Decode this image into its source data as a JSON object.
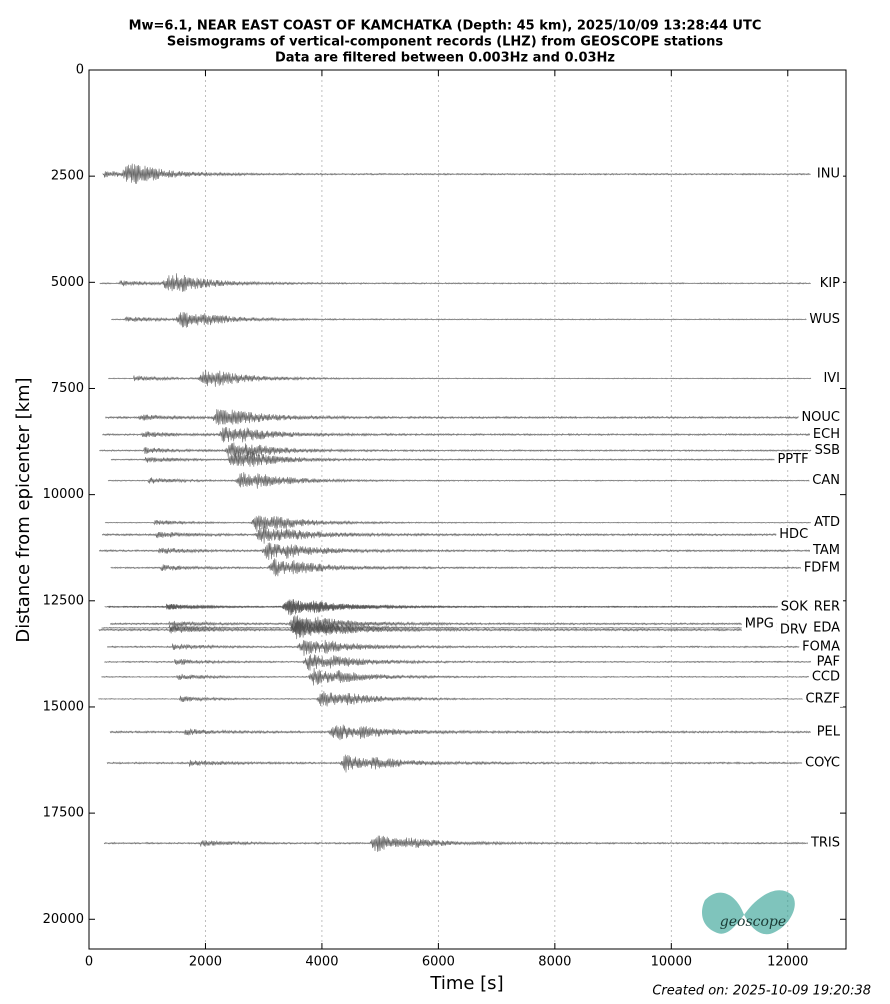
{
  "chart_data": {
    "type": "seismogram-section",
    "title": [
      "Mw=6.1, NEAR EAST COAST OF KAMCHATKA (Depth: 45 km), 2025/10/09 13:28:44 UTC",
      "Seismograms of vertical-component records (LHZ) from GEOSCOPE stations",
      "Data are filtered between 0.003Hz and 0.03Hz"
    ],
    "xlabel": "Time [s]",
    "ylabel": "Distance from epicenter [km]",
    "xlim": [
      0,
      13000
    ],
    "ylim": [
      0,
      20700
    ],
    "xticks": [
      0,
      2000,
      4000,
      6000,
      8000,
      10000,
      12000
    ],
    "yticks": [
      0,
      2500,
      5000,
      7500,
      10000,
      12500,
      15000,
      17500,
      20000
    ],
    "grid": true,
    "color": "#4d4d4d",
    "categories": [
      "INU",
      "KIP",
      "WUS",
      "IVI",
      "NOUC",
      "ECH",
      "SSB",
      "PPTF",
      "CAN",
      "ATD",
      "HDC",
      "TAM",
      "FDFM",
      "RER",
      "SOK",
      "EDA",
      "DRV",
      "MPG",
      "FOMA",
      "PAF",
      "CCD",
      "CRZF",
      "PEL",
      "COYC",
      "TRIS"
    ],
    "values": [
      2453,
      5024,
      5873,
      7264,
      8184,
      8585,
      8962,
      9175,
      9670,
      10660,
      10943,
      11321,
      11722,
      12642,
      12642,
      13137,
      13184,
      13042,
      13585,
      13939,
      14292,
      14811,
      15590,
      16321,
      18208
    ],
    "logo": "geoscope",
    "footer": "Created on: 2025-10-09 19:20:38"
  }
}
